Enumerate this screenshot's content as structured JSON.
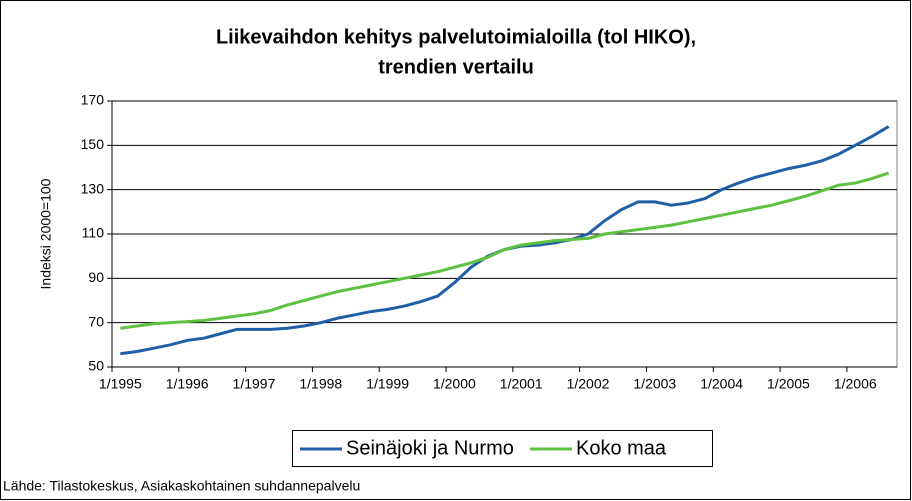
{
  "chart_data": {
    "type": "line",
    "title": [
      "Liikevaihdon kehitys palvelutoimialoilla (tol HIKO),",
      "trendien vertailu"
    ],
    "y_label": "Indeksi 2000=100",
    "source": "Lähde: Tilastokeskus, Asiakaskohtainen suhdannepalvelu",
    "categories": [
      "1/1995",
      null,
      null,
      null,
      "1/1996",
      null,
      null,
      null,
      "1/1997",
      null,
      null,
      null,
      "1/1998",
      null,
      null,
      null,
      "1/1999",
      null,
      null,
      null,
      "1/2000",
      null,
      null,
      null,
      "1/2001",
      null,
      null,
      null,
      "1/2002",
      null,
      null,
      null,
      "1/2003",
      null,
      null,
      null,
      "1/2004",
      null,
      null,
      null,
      "1/2005",
      null,
      null,
      null,
      "1/2006",
      null,
      null
    ],
    "series": [
      {
        "name": "Seinäjoki ja Nurmo",
        "color": "#1f5fa8",
        "values": [
          56,
          57,
          58.5,
          60,
          62,
          63,
          65,
          67,
          67,
          67,
          67.5,
          68.5,
          70,
          72,
          73.5,
          75,
          76,
          77.5,
          79.5,
          82,
          88,
          95,
          100,
          103,
          104.5,
          105,
          106,
          107.5,
          110,
          116,
          121,
          124.5,
          124.5,
          123,
          124,
          126,
          130,
          133,
          135.5,
          137.5,
          139.5,
          141,
          143,
          146,
          150,
          154,
          158.5
        ]
      },
      {
        "name": "Koko maa",
        "color": "#5cc040",
        "values": [
          67.5,
          68.5,
          69.5,
          70,
          70.5,
          71,
          72,
          73,
          74,
          75.5,
          78,
          80,
          82,
          84,
          85.5,
          87,
          88.5,
          90,
          91.5,
          93,
          95,
          97,
          99.5,
          103,
          105,
          106,
          107,
          107.5,
          108,
          110,
          111,
          112,
          113,
          114,
          115.5,
          117,
          118.5,
          120,
          121.5,
          123,
          125,
          127,
          129.5,
          132,
          133,
          135,
          137.5
        ]
      }
    ],
    "ylim": [
      50,
      170
    ],
    "yticks": [
      50,
      70,
      90,
      110,
      130,
      150,
      170
    ],
    "grid": true,
    "legend": "bottom"
  }
}
